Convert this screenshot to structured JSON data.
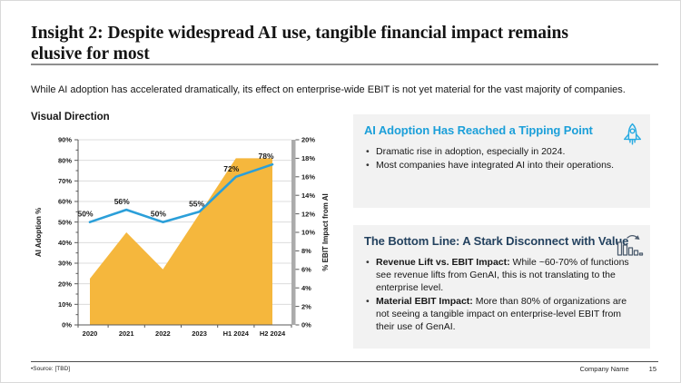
{
  "slide": {
    "title": "Insight 2: Despite widespread AI use, tangible financial impact remains elusive for most",
    "intro": "While AI adoption has accelerated dramatically, its effect on enterprise-wide EBIT is not yet material for the vast majority of companies.",
    "section_label": "Visual Direction"
  },
  "chart_data": {
    "type": "combo",
    "categories": [
      "2020",
      "2021",
      "2022",
      "2023",
      "H1 2024",
      "H2 2024"
    ],
    "series": [
      {
        "name": "AI Adoption %",
        "type": "line",
        "axis": "left",
        "values": [
          50,
          56,
          50,
          55,
          72,
          78
        ],
        "point_labels": [
          "50%",
          "56%",
          "50%",
          "55%",
          "72%",
          "78%"
        ],
        "color": "#2B9FD9"
      },
      {
        "name": "% EBIT Impact from AI",
        "type": "area",
        "axis": "right",
        "values": [
          5,
          10,
          6,
          12,
          18,
          18
        ],
        "color": "#F5B73D"
      }
    ],
    "left_axis": {
      "label": "AI Adoption %",
      "min": 0,
      "max": 90,
      "step": 10,
      "suffix": "%"
    },
    "right_axis": {
      "label": "% EBIT Impact from AI",
      "min": 0,
      "max": 20,
      "step": 2,
      "suffix": "%"
    },
    "grid": true,
    "legend": "none",
    "gridline_color": "#DCDCDC",
    "axis_color": "#595959",
    "right_axis_bar_color": "#ABABAB"
  },
  "callouts": [
    {
      "title": "AI Adoption Has Reached a Tipping Point",
      "title_color": "#1B9FD9",
      "icon": "rocket-icon",
      "bullets": [
        {
          "lead": "",
          "text": "Dramatic rise in adoption, especially in 2024."
        },
        {
          "lead": "",
          "text": "Most companies have integrated AI into their operations."
        }
      ]
    },
    {
      "title": "The Bottom Line: A Stark Disconnect with Value",
      "title_color": "#24425F",
      "icon": "declining-bar-chart-icon",
      "bullets": [
        {
          "lead": "Revenue Lift vs. EBIT Impact:",
          "text": " While ~60-70% of functions see revenue lifts from GenAI, this is not translating to the enterprise level."
        },
        {
          "lead": "Material EBIT Impact:",
          "text": " More than 80% of organizations are not seeing a tangible impact on enterprise-level EBIT from their use of GenAI."
        }
      ]
    }
  ],
  "footer": {
    "source": "•Source: [TBD]",
    "company": "Company Name",
    "page": "15"
  },
  "colors": {
    "accent_cyan": "#1B9FD9",
    "accent_navy": "#24425F",
    "area_orange": "#F5B73D",
    "line_blue": "#2B9FD9",
    "callout_bg": "#F2F2F2"
  }
}
